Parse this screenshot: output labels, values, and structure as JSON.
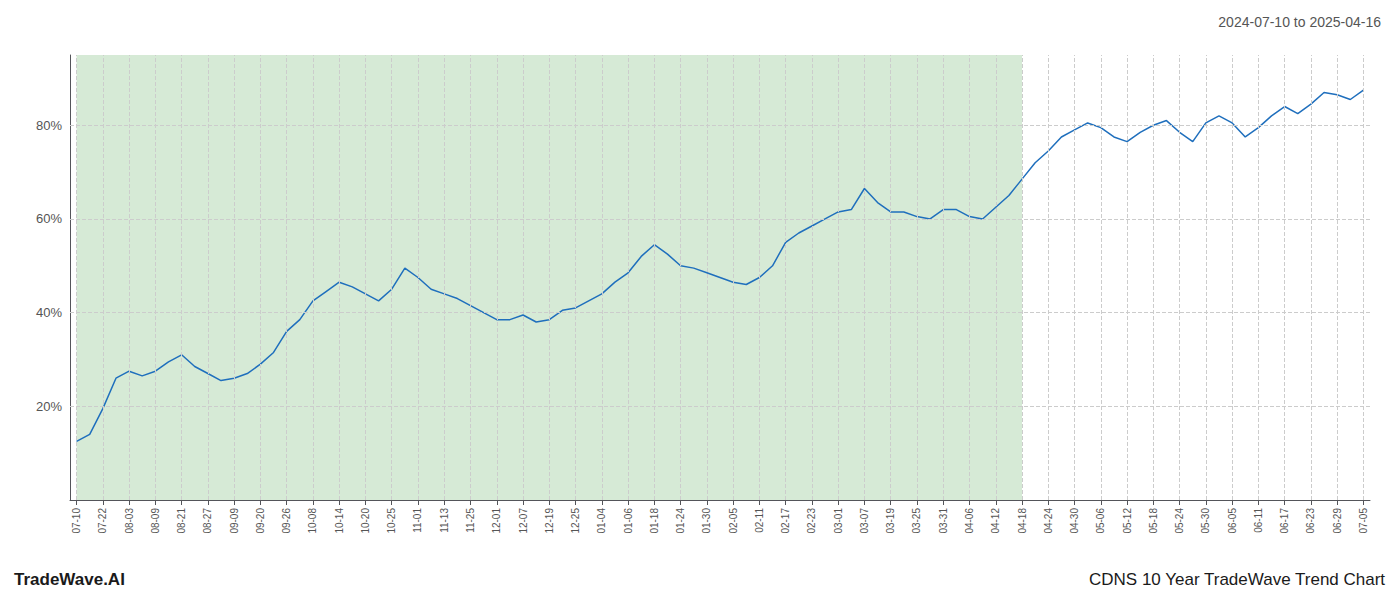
{
  "chart_data": {
    "type": "line",
    "title": "2024-07-10 to 2025-04-16",
    "annotations": [
      "TradeWave.AI",
      "CDNS 10 Year TradeWave Trend Chart"
    ],
    "categories": [
      "07-10",
      null,
      "07-22",
      null,
      "08-03",
      null,
      "08-09",
      null,
      "08-21",
      null,
      "08-27",
      null,
      "09-09",
      null,
      "09-20",
      null,
      "09-26",
      null,
      "10-08",
      null,
      "10-14",
      null,
      "10-20",
      null,
      "10-25",
      null,
      "11-01",
      null,
      "11-13",
      null,
      "11-25",
      null,
      "12-01",
      null,
      "12-07",
      null,
      "12-19",
      null,
      "12-25",
      null,
      "01-04",
      null,
      "01-06",
      null,
      "01-18",
      null,
      "01-24",
      null,
      "01-30",
      null,
      "02-05",
      null,
      "02-11",
      null,
      "02-17",
      null,
      "02-23",
      null,
      "03-01",
      null,
      "03-07",
      null,
      "03-19",
      null,
      "03-25",
      null,
      "03-31",
      null,
      "04-06",
      null,
      "04-12",
      null,
      "04-18",
      null,
      "04-24",
      null,
      "04-30",
      null,
      "05-06",
      null,
      "05-12",
      null,
      "05-18",
      null,
      "05-24",
      null,
      "05-30",
      null,
      "06-05",
      null,
      "06-11",
      null,
      "06-17",
      null,
      "06-23",
      null,
      "06-29",
      null,
      "07-05"
    ],
    "values": [
      12.5,
      14.0,
      19.5,
      26.0,
      27.5,
      26.5,
      27.5,
      29.5,
      31.0,
      28.5,
      27.0,
      25.5,
      26.0,
      27.0,
      29.0,
      31.5,
      36.0,
      38.5,
      42.5,
      44.5,
      46.5,
      45.5,
      44.0,
      42.5,
      45.0,
      49.5,
      47.5,
      45.0,
      44.0,
      43.0,
      41.5,
      40.0,
      38.5,
      38.5,
      39.5,
      38.0,
      38.5,
      40.5,
      41.0,
      42.5,
      44.0,
      46.5,
      48.5,
      52.0,
      54.5,
      52.5,
      50.0,
      49.5,
      48.5,
      47.5,
      46.5,
      46.0,
      47.5,
      50.0,
      55.0,
      57.0,
      58.5,
      60.0,
      61.5,
      62.0,
      66.5,
      63.5,
      61.5,
      61.5,
      60.5,
      60.0,
      62.0,
      62.0,
      60.5,
      60.0,
      62.5,
      65.0,
      68.5,
      72.0,
      74.5,
      77.5,
      79.0,
      80.5,
      79.5,
      77.5,
      76.5,
      78.5,
      80.0,
      81.0,
      78.5,
      76.5,
      80.5,
      82.0,
      80.5,
      77.5,
      79.5,
      82.0,
      84.0,
      82.5,
      84.5,
      87.0,
      86.5,
      85.5,
      87.5
    ],
    "color": "#1f6fbd",
    "ylim": [
      0,
      95
    ],
    "yticks": [
      {
        "value": 20,
        "label": "20%"
      },
      {
        "value": 40,
        "label": "40%"
      },
      {
        "value": 60,
        "label": "60%"
      },
      {
        "value": 80,
        "label": "80%"
      }
    ],
    "grid": true,
    "shade": {
      "start": "07-10",
      "end": "04-18",
      "color": "#d6ead6"
    }
  }
}
